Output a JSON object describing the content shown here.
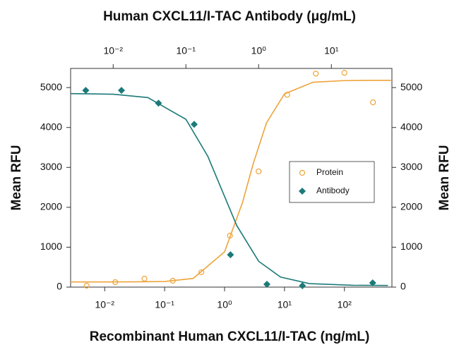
{
  "chart_data": {
    "type": "scatter",
    "title": "Human CXCL11/I-TAC Antibody (μg/mL)",
    "x_label": "Recombinant Human CXCL11/I-TAC (ng/mL)",
    "y_label": "Mean RFU",
    "y2_label": "Mean RFU",
    "xscale": "log",
    "x2scale": "log",
    "xlim": [
      0.0027,
      620
    ],
    "xticks": [
      {
        "value": 0.01,
        "label": "10⁻²"
      },
      {
        "value": 0.1,
        "label": "10⁻¹"
      },
      {
        "value": 1,
        "label": "10⁰"
      },
      {
        "value": 10,
        "label": "10¹"
      },
      {
        "value": 100,
        "label": "10²"
      }
    ],
    "x2lim": [
      0.0026,
      68
    ],
    "x2ticks": [
      {
        "value": 0.01,
        "label": "10⁻²"
      },
      {
        "value": 0.1,
        "label": "10⁻¹"
      },
      {
        "value": 1,
        "label": "10⁰"
      },
      {
        "value": 10,
        "label": "10¹"
      }
    ],
    "ylim": [
      0,
      5480
    ],
    "yticks": [
      0,
      1000,
      2000,
      3000,
      4000,
      5000
    ],
    "y2lim": [
      0,
      5480
    ],
    "y2ticks": [
      0,
      1000,
      2000,
      3000,
      4000,
      5000
    ],
    "legend": "center right",
    "series": [
      {
        "name": "Protein",
        "color": "#eea33a",
        "marker": "circle",
        "xaxis": "x",
        "x": [
          0.005,
          0.015,
          0.046,
          0.137,
          0.41,
          1.23,
          3.7,
          11.1,
          33.3,
          100,
          300
        ],
        "values": [
          35,
          124,
          212,
          159,
          371,
          1290,
          2900,
          4820,
          5350,
          5370,
          4630
        ],
        "fit": {
          "x": [
            0.0027,
            0.01,
            0.03,
            0.1,
            0.3,
            1,
            2,
            3,
            5,
            10,
            30,
            100,
            300,
            600
          ],
          "values": [
            130,
            130,
            131,
            141,
            218,
            884,
            2128,
            3088,
            4113,
            4842,
            5135,
            5175,
            5180,
            5180
          ]
        }
      },
      {
        "name": "Antibody",
        "color": "#1c7a78",
        "marker": "diamond",
        "xaxis": "x2",
        "x": [
          0.0042,
          0.013,
          0.042,
          0.13,
          0.41,
          1.3,
          4,
          37
        ],
        "values": [
          4930,
          4930,
          4610,
          4080,
          810,
          70,
          35,
          106
        ],
        "fit": {
          "x": [
            0.0026,
            0.01,
            0.03,
            0.1,
            0.2,
            0.3,
            0.5,
            1,
            2,
            5,
            20,
            60
          ],
          "values": [
            4850,
            4833,
            4750,
            4205,
            3279,
            2509,
            1543,
            648,
            252,
            88,
            45,
            41
          ]
        }
      }
    ]
  }
}
